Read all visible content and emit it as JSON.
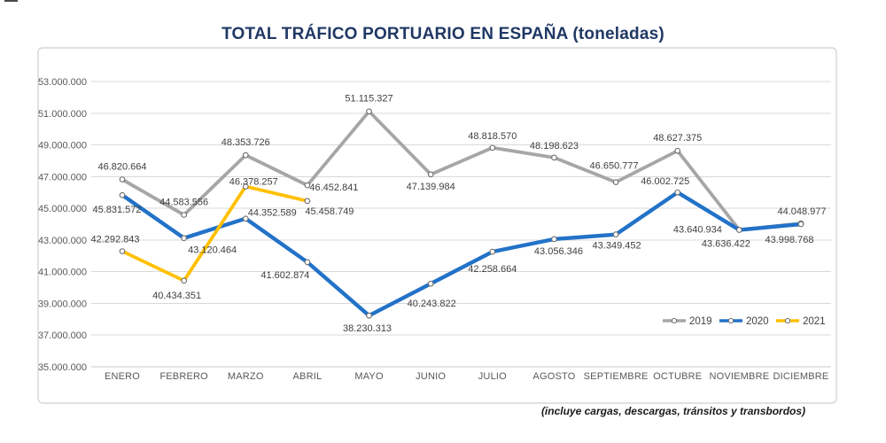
{
  "chart_data": {
    "type": "line",
    "title": "TOTAL TRÁFICO PORTUARIO EN ESPAÑA (toneladas)",
    "footnote": "(incluye cargas, descargas, tránsitos y transbordos)",
    "categories": [
      "ENERO",
      "FEBRERO",
      "MARZO",
      "ABRIL",
      "MAYO",
      "JUNIO",
      "JULIO",
      "AGOSTO",
      "SEPTIEMBRE",
      "OCTUBRE",
      "NOVIEMBRE",
      "DICIEMBRE"
    ],
    "y_axis": {
      "min": 35000000,
      "max": 53000000,
      "step": 2000000,
      "tick_labels": [
        "35.000.000",
        "37.000.000",
        "39.000.000",
        "41.000.000",
        "43.000.000",
        "45.000.000",
        "47.000.000",
        "49.000.000",
        "51.000.000",
        "53.000.000"
      ],
      "grid": true
    },
    "legend": {
      "position": "inside-bottom-right",
      "entries": [
        "2019",
        "2020",
        "2021"
      ]
    },
    "series": [
      {
        "name": "2019",
        "color": "#A6A6A6",
        "stroke_width": 3.8,
        "values": [
          46820664,
          44583556,
          48353726,
          46452841,
          51115327,
          47139984,
          48818570,
          48198623,
          46650777,
          48627375,
          43640934,
          44048977
        ],
        "label_offsets": [
          [
            0,
            -15
          ],
          [
            0,
            -15
          ],
          [
            0,
            -15
          ],
          [
            30,
            2
          ],
          [
            0,
            -15
          ],
          [
            0,
            13
          ],
          [
            0,
            -14
          ],
          [
            0,
            -14
          ],
          [
            -2,
            -19
          ],
          [
            0,
            -15
          ],
          [
            -47,
            -1
          ],
          [
            1,
            -14
          ]
        ]
      },
      {
        "name": "2020",
        "color": "#2272C8",
        "stroke_width": 4.4,
        "values": [
          45831572,
          43120464,
          44352589,
          41602874,
          38230313,
          40243822,
          42258664,
          43056346,
          43349452,
          46002725,
          43636422,
          43998768
        ],
        "label_offsets": [
          [
            -6,
            16
          ],
          [
            32,
            13
          ],
          [
            30,
            -7
          ],
          [
            -25,
            14
          ],
          [
            -2,
            14
          ],
          [
            1,
            22
          ],
          [
            0,
            19
          ],
          [
            5,
            13
          ],
          [
            1,
            12
          ],
          [
            -14,
            -13
          ],
          [
            -15,
            15
          ],
          [
            -13,
            17
          ]
        ]
      },
      {
        "name": "2021",
        "color": "#FFC000",
        "stroke_width": 3.8,
        "values": [
          42292843,
          40434351,
          46378257,
          45458749
        ],
        "label_offsets": [
          [
            -8,
            -14
          ],
          [
            -8,
            16
          ],
          [
            9,
            -6
          ],
          [
            25,
            11
          ]
        ]
      }
    ],
    "colors": {
      "title": "#1F3864",
      "grid": "#D9D9D9",
      "baseline": "#C9C9C9",
      "card_border": "#D6D6D6",
      "axis_text": "#595959",
      "label_text": "#3F3F3F",
      "marker_outline": "#6E6E6E",
      "marker_fill": "#FFFFFF"
    }
  }
}
